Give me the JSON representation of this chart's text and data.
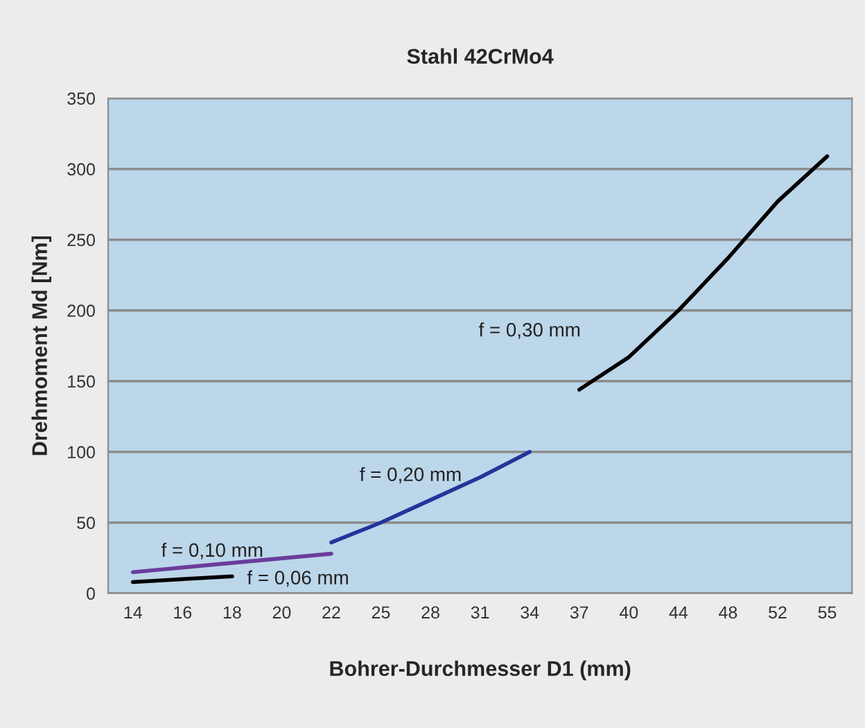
{
  "chart_data": {
    "type": "line",
    "title": "Stahl 42CrMo4",
    "xlabel": "Bohrer-Durchmesser D1 (mm)",
    "ylabel": "Drehmoment Md [Nm]",
    "categories": [
      "14",
      "16",
      "18",
      "20",
      "22",
      "25",
      "28",
      "31",
      "34",
      "37",
      "40",
      "44",
      "48",
      "52",
      "55"
    ],
    "series": [
      {
        "name": "f = 0,06 mm",
        "color": "#000000",
        "values": [
          8,
          10,
          12,
          null,
          null,
          null,
          null,
          null,
          null,
          null,
          null,
          null,
          null,
          null,
          null
        ]
      },
      {
        "name": "f = 0,10 mm",
        "color": "#6a3d9a",
        "values": [
          15,
          null,
          null,
          null,
          28,
          null,
          null,
          null,
          null,
          null,
          null,
          null,
          null,
          null,
          null
        ]
      },
      {
        "name": "f = 0,20 mm",
        "color": "#24349a",
        "values": [
          null,
          null,
          null,
          null,
          36,
          50,
          66,
          82,
          100,
          null,
          null,
          null,
          null,
          null,
          null
        ]
      },
      {
        "name": "f = 0,30 mm",
        "color": "#000000",
        "values": [
          null,
          null,
          null,
          null,
          null,
          null,
          null,
          null,
          null,
          144,
          167,
          200,
          237,
          277,
          309
        ]
      }
    ],
    "ylim": [
      0,
      350
    ],
    "yticks": [
      0,
      50,
      100,
      150,
      200,
      250,
      300,
      350
    ],
    "grid": "y",
    "legend": false,
    "marker": "none",
    "line_style": "solid"
  }
}
